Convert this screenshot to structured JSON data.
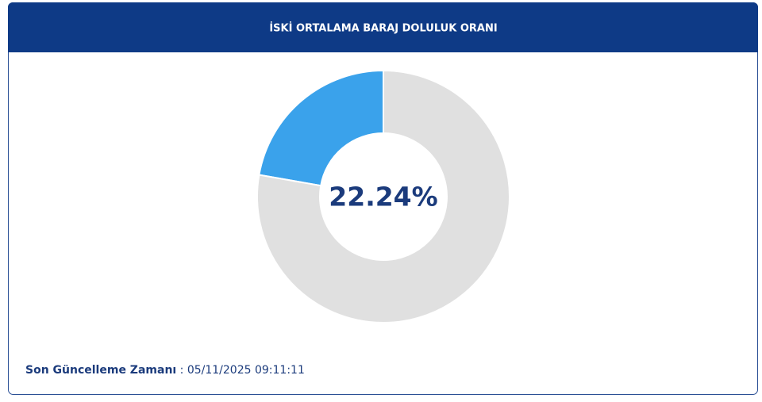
{
  "chart_data": {
    "type": "donut",
    "title": "İSKİ ORTALAMA BARAJ DOLULUK ORANI",
    "values": [
      22.24,
      77.76
    ],
    "value_labels": [
      "22.24%",
      null
    ],
    "colors": [
      "#3aa2eb",
      "#e0e0e0"
    ]
  },
  "footer": {
    "label": "Son Güncelleme Zamanı",
    "value": ": 05/11/2025 09:11:11"
  }
}
